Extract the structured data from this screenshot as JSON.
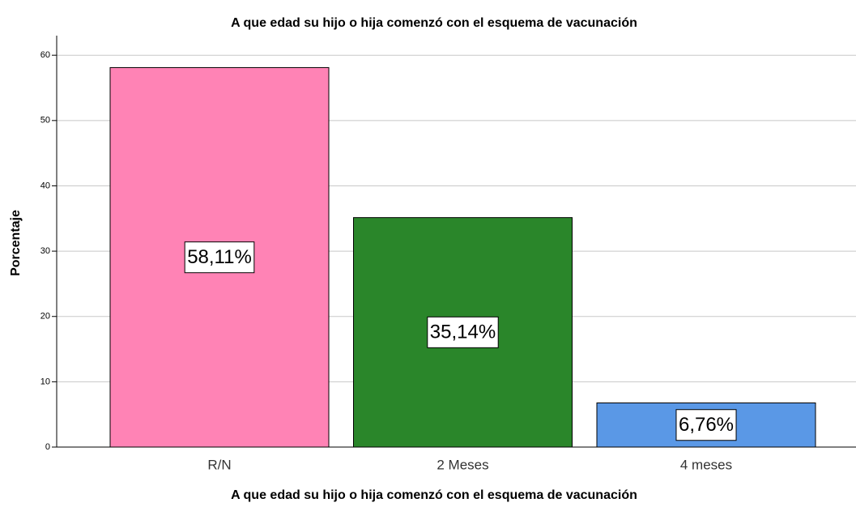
{
  "chart_data": {
    "type": "bar",
    "title": "A que edad su hijo o hija comenzó con el esquema de vacunación",
    "x_label": "A que edad su hijo o hija comenzó con el esquema de vacunación",
    "y_label": "Porcentaje",
    "categories": [
      "R/N",
      "2 Meses",
      "4 meses"
    ],
    "values": [
      58.11,
      35.14,
      6.76
    ],
    "value_labels": [
      "58,11%",
      "35,14%",
      "6,76%"
    ],
    "colors": [
      "#ff83b5",
      "#2a862a",
      "#5a98e6"
    ],
    "ylim": [
      0,
      63
    ],
    "yticks": [
      0,
      10,
      20,
      30,
      40,
      50,
      60
    ],
    "grid": true
  }
}
